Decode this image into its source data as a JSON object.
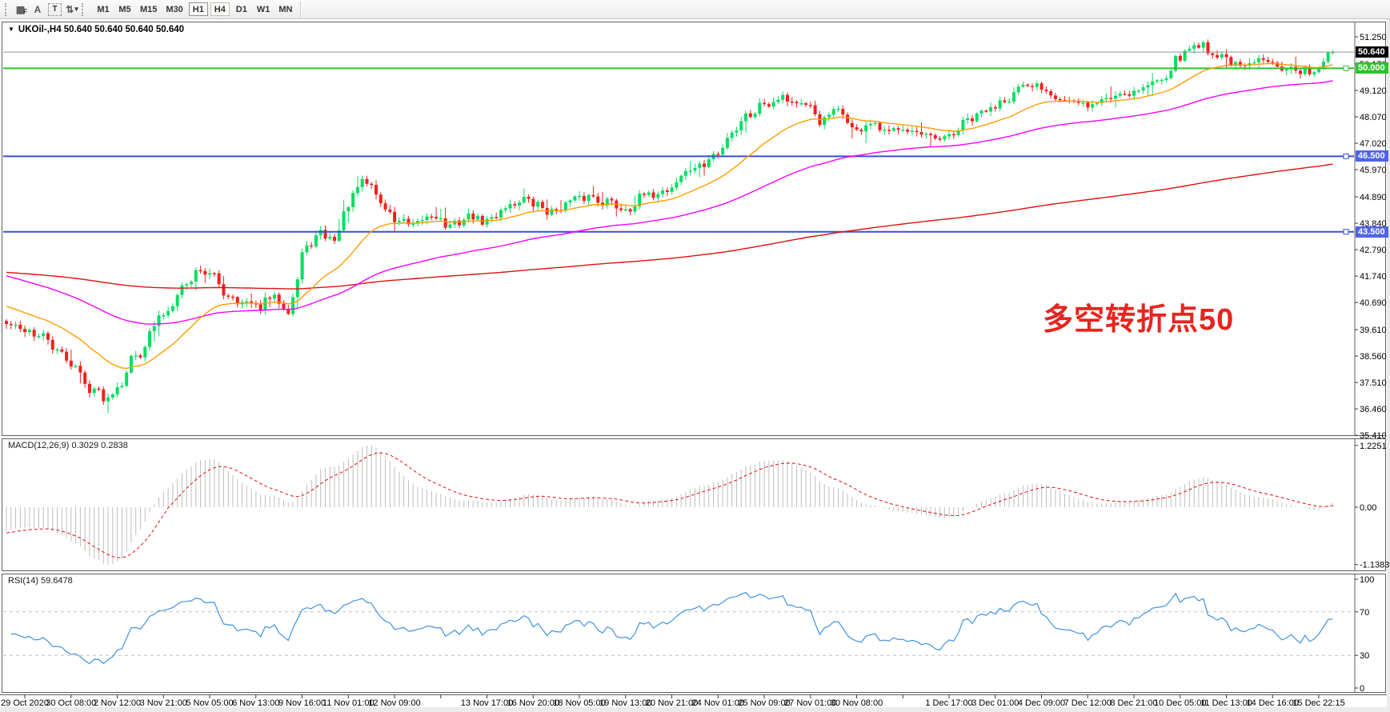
{
  "toolbar": {
    "icons": [
      {
        "name": "indicator-grid-icon",
        "glyph": "▦",
        "sub": "F"
      },
      {
        "name": "text-label-icon",
        "glyph": "A"
      },
      {
        "name": "text-box-icon",
        "glyph": "T"
      },
      {
        "name": "objects-arrows-icon",
        "glyph": "⇅"
      },
      {
        "name": "dropdown-caret-icon",
        "glyph": "▾"
      }
    ],
    "timeframes": [
      {
        "label": "M1",
        "state": "normal"
      },
      {
        "label": "M5",
        "state": "normal"
      },
      {
        "label": "M15",
        "state": "normal"
      },
      {
        "label": "M30",
        "state": "normal"
      },
      {
        "label": "H1",
        "state": "focused"
      },
      {
        "label": "H4",
        "state": "active"
      },
      {
        "label": "D1",
        "state": "normal"
      },
      {
        "label": "W1",
        "state": "normal"
      },
      {
        "label": "MN",
        "state": "normal"
      }
    ]
  },
  "chart": {
    "menu_arrow": "▼",
    "title": "UKOil-,H4  50.640 50.640 50.640 50.640",
    "annotation": {
      "text": "多空转折点50",
      "color": "#e8241f"
    },
    "price_axis_ticks": [
      "51.250",
      "50.170",
      "49.120",
      "48.070",
      "47.020",
      "45.970",
      "44.890",
      "43.840",
      "42.790",
      "41.740",
      "40.690",
      "39.610",
      "38.560",
      "37.510",
      "36.460",
      "35.410"
    ],
    "levels": [
      {
        "name": "current-price-line",
        "label": "50.640",
        "value": 50.64,
        "line_color": "#8a9096",
        "tag_bg": "#000000",
        "tag_fg": "#ffffff",
        "width": 1,
        "handle": false
      },
      {
        "name": "hline-50",
        "label": "50.000",
        "value": 50.0,
        "line_color": "#2dc22d",
        "tag_bg": "#2dc22d",
        "tag_fg": "#ffffff",
        "width": 2,
        "handle": true
      },
      {
        "name": "hline-46-5",
        "label": "46.500",
        "value": 46.5,
        "line_color": "#3450d8",
        "tag_bg": "#4f64e6",
        "tag_fg": "#ffffff",
        "width": 2,
        "handle": true
      },
      {
        "name": "hline-43-5",
        "label": "43.500",
        "value": 43.5,
        "line_color": "#3450d8",
        "tag_bg": "#4f64e6",
        "tag_fg": "#ffffff",
        "width": 2,
        "handle": true
      }
    ]
  },
  "macd": {
    "label": "MACD(12,26,9) 0.3029 0.2838",
    "axis": [
      {
        "v": 1.2251,
        "label": "1.2251"
      },
      {
        "v": 0,
        "label": "0.00"
      },
      {
        "v": -1.1383,
        "label": "-1.1383"
      }
    ]
  },
  "rsi": {
    "label": "RSI(14) 59.6478",
    "axis": [
      {
        "v": 100,
        "label": "100"
      },
      {
        "v": 70,
        "label": "70"
      },
      {
        "v": 30,
        "label": "30"
      },
      {
        "v": 0,
        "label": "0"
      }
    ],
    "levels": [
      70,
      30
    ]
  },
  "time_axis": {
    "slots": [
      "29 Oct 2020",
      "30 Oct 08:00",
      "2 Nov 12:00",
      "3 Nov 21:00",
      "5 Nov 05:00",
      "6 Nov 13:00",
      "9 Nov 16:00",
      "11 Nov 01:00",
      "12 Nov 09:00",
      "",
      "13 Nov 17:00",
      "16 Nov 20:00",
      "18 Nov 05:00",
      "19 Nov 13:00",
      "20 Nov 21:00",
      "24 Nov 01:00",
      "25 Nov 09:00",
      "27 Nov 01:00",
      "30 Nov 08:00",
      "",
      "1 Dec 17:00",
      "3 Dec 01:00",
      "4 Dec 09:00",
      "7 Dec 12:00",
      "8 Dec 21:00",
      "10 Dec 05:00",
      "11 Dec 13:00",
      "14 Dec 16:00",
      "15 Dec 22:15"
    ]
  },
  "chart_data": {
    "type": "candlestick",
    "symbol": "UKOil-",
    "timeframe": "H4",
    "bars": 288,
    "seed": 42,
    "noise": 0.17,
    "wick": 0.16,
    "last_close": 50.64,
    "price_range_top_label": 51.25,
    "close_anchors": [
      [
        0,
        39.8
      ],
      [
        4,
        39.6
      ],
      [
        8,
        39.3
      ],
      [
        12,
        38.6
      ],
      [
        14,
        38.3
      ],
      [
        18,
        37.3
      ],
      [
        22,
        36.9
      ],
      [
        24,
        37.4
      ],
      [
        28,
        38.6
      ],
      [
        34,
        40.2
      ],
      [
        38,
        41.3
      ],
      [
        42,
        42.0
      ],
      [
        44,
        41.8
      ],
      [
        48,
        41.0
      ],
      [
        51,
        40.7
      ],
      [
        54,
        40.5
      ],
      [
        58,
        40.9
      ],
      [
        61,
        40.4
      ],
      [
        63,
        41.6
      ],
      [
        64,
        42.6
      ],
      [
        66,
        43.1
      ],
      [
        68,
        43.4
      ],
      [
        71,
        43.2
      ],
      [
        74,
        44.6
      ],
      [
        77,
        45.5
      ],
      [
        79,
        45.3
      ],
      [
        82,
        44.4
      ],
      [
        84,
        44.0
      ],
      [
        88,
        43.7
      ],
      [
        92,
        44.2
      ],
      [
        96,
        43.7
      ],
      [
        100,
        44.1
      ],
      [
        104,
        43.9
      ],
      [
        108,
        44.5
      ],
      [
        112,
        44.8
      ],
      [
        114,
        44.6
      ],
      [
        118,
        44.3
      ],
      [
        122,
        44.7
      ],
      [
        126,
        44.9
      ],
      [
        130,
        44.7
      ],
      [
        134,
        44.4
      ],
      [
        138,
        44.9
      ],
      [
        142,
        45.1
      ],
      [
        144,
        45.3
      ],
      [
        147,
        45.9
      ],
      [
        150,
        46.1
      ],
      [
        154,
        46.6
      ],
      [
        157,
        47.5
      ],
      [
        160,
        48.1
      ],
      [
        164,
        48.6
      ],
      [
        168,
        48.9
      ],
      [
        171,
        48.6
      ],
      [
        174,
        48.4
      ],
      [
        176,
        47.9
      ],
      [
        180,
        48.3
      ],
      [
        184,
        47.5
      ],
      [
        187,
        47.8
      ],
      [
        190,
        47.4
      ],
      [
        194,
        47.7
      ],
      [
        198,
        47.3
      ],
      [
        202,
        47.1
      ],
      [
        204,
        47.3
      ],
      [
        208,
        47.9
      ],
      [
        212,
        48.3
      ],
      [
        216,
        48.8
      ],
      [
        220,
        49.2
      ],
      [
        224,
        49.3
      ],
      [
        227,
        48.9
      ],
      [
        231,
        48.6
      ],
      [
        234,
        48.5
      ],
      [
        238,
        48.8
      ],
      [
        241,
        49.0
      ],
      [
        244,
        49.1
      ],
      [
        248,
        49.4
      ],
      [
        251,
        49.8
      ],
      [
        254,
        50.5
      ],
      [
        258,
        51.0
      ],
      [
        261,
        50.6
      ],
      [
        264,
        50.4
      ],
      [
        267,
        50.0
      ],
      [
        270,
        50.2
      ],
      [
        273,
        50.4
      ],
      [
        276,
        50.1
      ],
      [
        280,
        49.8
      ],
      [
        283,
        49.9
      ],
      [
        285,
        50.3
      ],
      [
        287,
        50.64
      ]
    ],
    "candle_up_color": "#07dd62",
    "candle_down_color": "#f3201c",
    "moving_averages": [
      {
        "name": "ma-fast",
        "color": "#ff9d00",
        "alpha": 0.085,
        "seed": 40.6
      },
      {
        "name": "ma-mid",
        "color": "#ff00ff",
        "alpha": 0.026,
        "seed": 41.8
      },
      {
        "name": "ma-slow",
        "color": "#dd1111",
        "alpha": 0.006,
        "seed": 41.9
      }
    ],
    "macd": {
      "fast": 12,
      "slow": 26,
      "signal": 9,
      "hist_color": "#bdbdbd",
      "signal_color": "#e01010",
      "axis_max": 1.2251,
      "axis_min": -1.1383,
      "display_main": 0.3029,
      "display_signal": 0.2838
    },
    "rsi": {
      "period": 14,
      "color": "#3f92e0",
      "value": 59.6478,
      "level_color": "#c0c0c0"
    }
  }
}
